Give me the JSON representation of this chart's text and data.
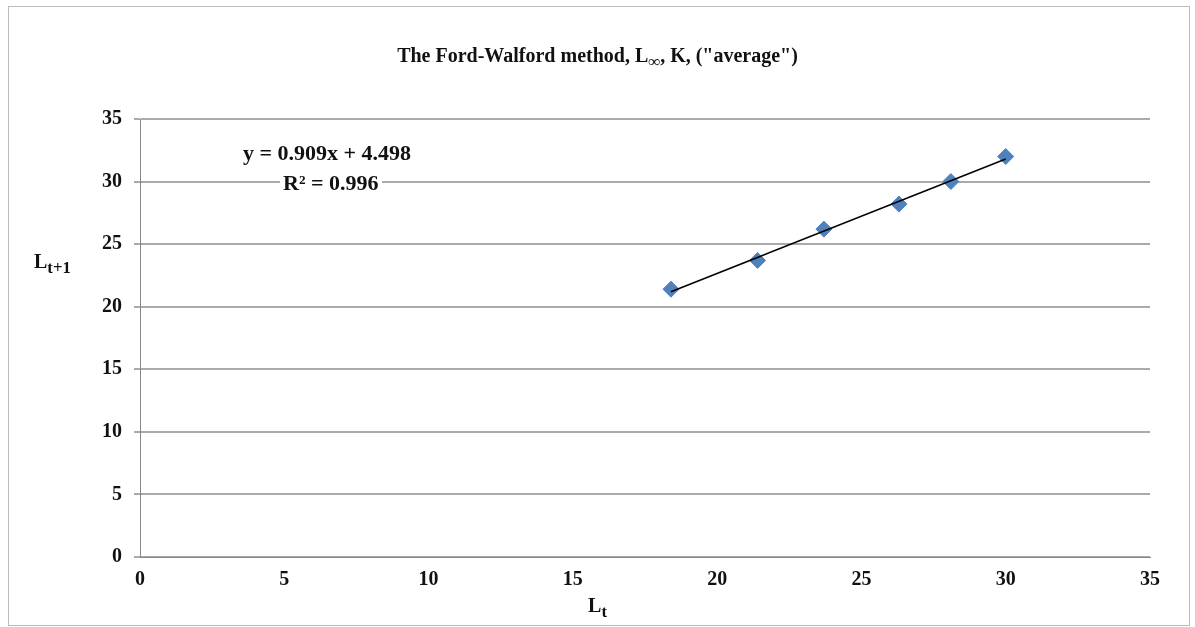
{
  "chart_data": {
    "type": "scatter",
    "title": "The Ford-Walford method, L$_{∞}$, K, (\"average\")",
    "xlabel": "L$_{t}$",
    "ylabel": "L$_{t+1}$",
    "annotations": [
      "y = 0.909x + 4.498",
      "R² = 0.996"
    ],
    "series": [
      {
        "color": "#4f81bd",
        "x": [
          18.4,
          21.4,
          23.7,
          26.3,
          28.1,
          30.0
        ],
        "values": [
          21.4,
          23.7,
          26.2,
          28.2,
          30.0,
          32.0
        ],
        "marker": "diamond"
      },
      {
        "type": "line",
        "color": "#000000",
        "x": [
          18.4,
          30.0
        ],
        "values": [
          21.2,
          31.8
        ],
        "marker": "none",
        "line_style": "solid"
      }
    ],
    "xlim": [
      0,
      35
    ],
    "xticks": [
      0,
      5,
      10,
      15,
      20,
      25,
      30,
      35
    ],
    "ylim": [
      0,
      35
    ],
    "yticks": [
      0,
      5,
      10,
      15,
      20,
      25,
      30,
      35
    ],
    "grid": "y",
    "legend": false
  }
}
